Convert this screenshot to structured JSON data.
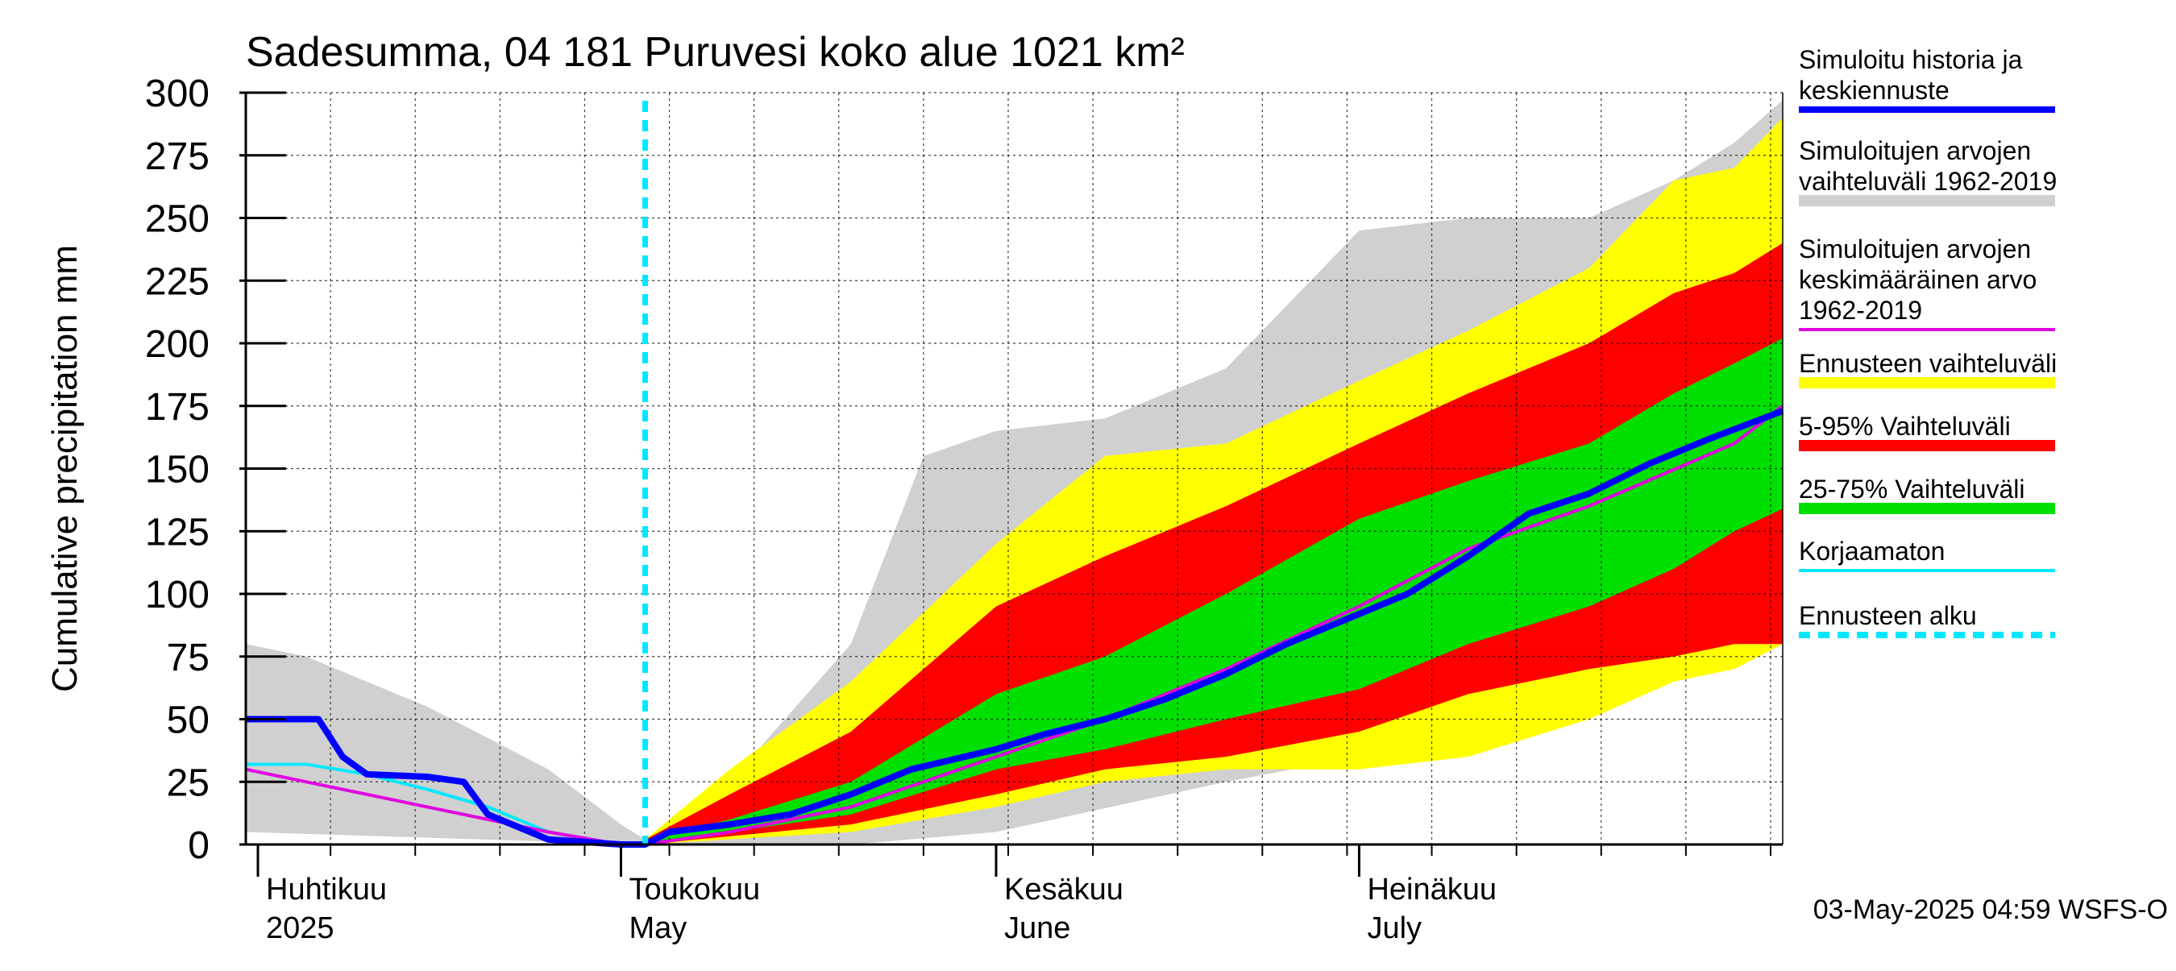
{
  "chart_data": {
    "type": "area",
    "title": "Sadesumma, 04 181 Puruvesi koko alue 1021 km²",
    "ylabel": "Cumulative precipitation   mm",
    "xlabel": "",
    "ylim": [
      0,
      300
    ],
    "yticks": [
      0,
      25,
      50,
      75,
      100,
      125,
      150,
      175,
      200,
      225,
      250,
      275,
      300
    ],
    "xlim": [
      "2025-03-31",
      "2025-08-05"
    ],
    "grid": true,
    "legend_placement": "right",
    "forecast_start": "2025-05-03",
    "month_labels": [
      {
        "date": "2025-04-01",
        "fi": "Huhtikuu",
        "en": "2025"
      },
      {
        "date": "2025-05-01",
        "fi": "Toukokuu",
        "en": "May"
      },
      {
        "date": "2025-06-01",
        "fi": "Kesäkuu",
        "en": "June"
      },
      {
        "date": "2025-07-01",
        "fi": "Heinäkuu",
        "en": "July"
      }
    ],
    "footer": "03-May-2025 04:59 WSFS-O",
    "colors": {
      "historical_range": "#d0d0d0",
      "forecast_range": "#ffff00",
      "p5_95": "#ff0000",
      "p25_75": "#00e000",
      "simulated": "#0000ff",
      "mean": "#e000e0",
      "uncorrected": "#00e8ff",
      "forecast_start": "#00e8ff"
    },
    "legend": [
      {
        "key": "simulated",
        "label": "Simuloitu historia ja\nkeskiennuste",
        "style": "thick-line"
      },
      {
        "key": "historical_range",
        "label": "Simuloitujen arvojen\nvaihteluväli 1962-2019",
        "style": "band"
      },
      {
        "key": "mean",
        "label": "Simuloitujen arvojen\nkeskimääräinen arvo\n   1962-2019",
        "style": "line"
      },
      {
        "key": "forecast_range",
        "label": "Ennusteen vaihteluväli",
        "style": "band"
      },
      {
        "key": "p5_95",
        "label": "5-95% Vaihteluväli",
        "style": "band"
      },
      {
        "key": "p25_75",
        "label": "25-75% Vaihteluväli",
        "style": "band"
      },
      {
        "key": "uncorrected",
        "label": "Korjaamaton",
        "style": "line"
      },
      {
        "key": "forecast_start",
        "label": "Ennusteen alku",
        "style": "dashed"
      }
    ],
    "series": {
      "historical_range_upper": {
        "x": [
          "2025-03-31",
          "2025-04-05",
          "2025-04-15",
          "2025-04-25",
          "2025-05-01",
          "2025-05-03",
          "2025-05-10",
          "2025-05-20",
          "2025-05-26",
          "2025-06-01",
          "2025-06-10",
          "2025-06-20",
          "2025-07-01",
          "2025-07-10",
          "2025-07-20",
          "2025-07-27",
          "2025-08-01",
          "2025-08-05"
        ],
        "y": [
          80,
          75,
          55,
          30,
          8,
          2,
          25,
          80,
          155,
          165,
          170,
          190,
          245,
          250,
          250,
          265,
          280,
          297
        ]
      },
      "historical_range_lower": {
        "x": [
          "2025-03-31",
          "2025-05-03",
          "2025-05-20",
          "2025-06-01",
          "2025-06-20",
          "2025-07-01",
          "2025-07-10",
          "2025-07-20",
          "2025-08-01",
          "2025-08-05"
        ],
        "y": [
          5,
          0,
          0,
          5,
          25,
          35,
          55,
          65,
          70,
          85
        ]
      },
      "forecast_range_upper": {
        "x": [
          "2025-05-03",
          "2025-05-10",
          "2025-05-20",
          "2025-06-01",
          "2025-06-10",
          "2025-06-20",
          "2025-07-01",
          "2025-07-10",
          "2025-07-20",
          "2025-07-27",
          "2025-08-01",
          "2025-08-05"
        ],
        "y": [
          2,
          30,
          65,
          120,
          155,
          160,
          185,
          205,
          230,
          265,
          270,
          290
        ]
      },
      "forecast_range_lower": {
        "x": [
          "2025-05-03",
          "2025-05-20",
          "2025-06-01",
          "2025-06-10",
          "2025-06-20",
          "2025-07-01",
          "2025-07-10",
          "2025-07-20",
          "2025-07-27",
          "2025-08-01",
          "2025-08-05"
        ],
        "y": [
          0,
          5,
          15,
          25,
          30,
          30,
          35,
          50,
          65,
          70,
          80
        ]
      },
      "p5_95_upper": {
        "x": [
          "2025-05-03",
          "2025-05-10",
          "2025-05-20",
          "2025-06-01",
          "2025-06-10",
          "2025-06-20",
          "2025-07-01",
          "2025-07-10",
          "2025-07-20",
          "2025-07-27",
          "2025-08-01",
          "2025-08-05"
        ],
        "y": [
          2,
          20,
          45,
          95,
          115,
          135,
          160,
          180,
          200,
          220,
          228,
          240
        ]
      },
      "p5_95_lower": {
        "x": [
          "2025-05-03",
          "2025-05-20",
          "2025-06-01",
          "2025-06-10",
          "2025-06-20",
          "2025-07-01",
          "2025-07-10",
          "2025-07-20",
          "2025-07-27",
          "2025-08-01",
          "2025-08-05"
        ],
        "y": [
          0,
          8,
          20,
          30,
          35,
          45,
          60,
          70,
          75,
          80,
          80
        ]
      },
      "p25_75_upper": {
        "x": [
          "2025-05-03",
          "2025-05-10",
          "2025-05-20",
          "2025-06-01",
          "2025-06-10",
          "2025-06-20",
          "2025-07-01",
          "2025-07-10",
          "2025-07-20",
          "2025-07-27",
          "2025-08-01",
          "2025-08-05"
        ],
        "y": [
          2,
          10,
          25,
          60,
          75,
          100,
          130,
          145,
          160,
          180,
          192,
          202
        ]
      },
      "p25_75_lower": {
        "x": [
          "2025-05-03",
          "2025-05-20",
          "2025-06-01",
          "2025-06-10",
          "2025-06-20",
          "2025-07-01",
          "2025-07-10",
          "2025-07-20",
          "2025-07-27",
          "2025-08-01",
          "2025-08-05"
        ],
        "y": [
          0,
          12,
          30,
          38,
          50,
          62,
          80,
          95,
          110,
          125,
          134
        ]
      },
      "simulated": {
        "x": [
          "2025-03-31",
          "2025-04-06",
          "2025-04-08",
          "2025-04-10",
          "2025-04-15",
          "2025-04-18",
          "2025-04-20",
          "2025-04-25",
          "2025-05-01",
          "2025-05-03",
          "2025-05-05",
          "2025-05-10",
          "2025-05-15",
          "2025-05-20",
          "2025-05-25",
          "2025-06-01",
          "2025-06-05",
          "2025-06-10",
          "2025-06-15",
          "2025-06-20",
          "2025-06-25",
          "2025-07-01",
          "2025-07-05",
          "2025-07-10",
          "2025-07-15",
          "2025-07-20",
          "2025-07-25",
          "2025-07-30",
          "2025-08-05"
        ],
        "y": [
          50,
          50,
          35,
          28,
          27,
          25,
          12,
          2,
          0,
          0,
          5,
          8,
          12,
          20,
          30,
          38,
          44,
          50,
          58,
          68,
          80,
          92,
          100,
          115,
          132,
          140,
          152,
          162,
          173
        ]
      },
      "mean": {
        "x": [
          "2025-03-31",
          "2025-04-05",
          "2025-04-10",
          "2025-04-15",
          "2025-04-20",
          "2025-04-25",
          "2025-05-01",
          "2025-05-03",
          "2025-05-10",
          "2025-05-20",
          "2025-06-01",
          "2025-06-10",
          "2025-06-20",
          "2025-07-01",
          "2025-07-10",
          "2025-07-20",
          "2025-08-01",
          "2025-08-05"
        ],
        "y": [
          30,
          25,
          20,
          15,
          10,
          5,
          0,
          0,
          5,
          15,
          35,
          50,
          70,
          95,
          118,
          135,
          160,
          175
        ]
      },
      "uncorrected": {
        "x": [
          "2025-03-31",
          "2025-04-05",
          "2025-04-10",
          "2025-04-15",
          "2025-04-20",
          "2025-04-25",
          "2025-05-01",
          "2025-05-03"
        ],
        "y": [
          32,
          32,
          28,
          22,
          15,
          5,
          0,
          0
        ]
      }
    }
  }
}
